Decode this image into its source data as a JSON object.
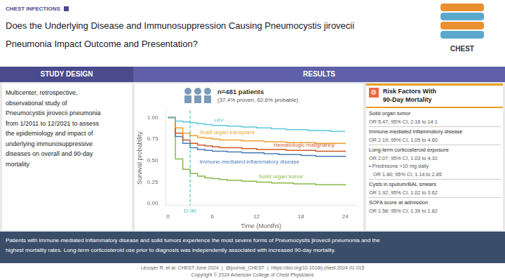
{
  "chart_data": {
    "type": "step",
    "title": [
      "Does the Underlying Disease and Immunosuppression Causing Pneumocystis jirovecii",
      "Pneumonia Impact Outcome and Presentation?"
    ],
    "x_label": "Time (Months)",
    "y_label": "Survival probability",
    "x": [
      0,
      1,
      2,
      3,
      4,
      5,
      6,
      7,
      8,
      9,
      10,
      11,
      12,
      13,
      14,
      15,
      16,
      17,
      18,
      19,
      20,
      21,
      22,
      23,
      24
    ],
    "series": [
      {
        "name": "HIV",
        "color": "#5bc8d8",
        "values": [
          1.0,
          0.96,
          0.95,
          0.94,
          0.93,
          0.92,
          0.91,
          0.91,
          0.9,
          0.9,
          0.89,
          0.89,
          0.88,
          0.88,
          0.87,
          0.87,
          0.86,
          0.86,
          0.86,
          0.85,
          0.85,
          0.85,
          0.84,
          0.84,
          0.84
        ]
      },
      {
        "name": "Solid organ transplant",
        "color": "#f0a030",
        "values": [
          1.0,
          0.88,
          0.82,
          0.79,
          0.77,
          0.76,
          0.75,
          0.74,
          0.74,
          0.74,
          0.73,
          0.73,
          0.73,
          0.72,
          0.72,
          0.72,
          0.71,
          0.71,
          0.71,
          0.71,
          0.7,
          0.7,
          0.7,
          0.7,
          0.69
        ]
      },
      {
        "name": "Hematologic malignancy",
        "color": "#d05828",
        "values": [
          1.0,
          0.82,
          0.74,
          0.7,
          0.68,
          0.67,
          0.66,
          0.65,
          0.65,
          0.65,
          0.64,
          0.64,
          0.63,
          0.63,
          0.63,
          0.63,
          0.62,
          0.62,
          0.62,
          0.62,
          0.61,
          0.61,
          0.61,
          0.61,
          0.6
        ]
      },
      {
        "name": "Immune-mediated inflammatory disease",
        "color": "#4878b8",
        "values": [
          1.0,
          0.78,
          0.7,
          0.65,
          0.63,
          0.62,
          0.61,
          0.61,
          0.6,
          0.6,
          0.59,
          0.59,
          0.59,
          0.58,
          0.58,
          0.57,
          0.57,
          0.57,
          0.56,
          0.56,
          0.55,
          0.55,
          0.55,
          0.55,
          0.54
        ]
      },
      {
        "name": "Solid organ tumor",
        "color": "#88b848",
        "values": [
          1.0,
          0.52,
          0.4,
          0.35,
          0.32,
          0.3,
          0.29,
          0.28,
          0.27,
          0.27,
          0.26,
          0.26,
          0.25,
          0.25,
          0.24,
          0.24,
          0.24,
          0.23,
          0.23,
          0.23,
          0.22,
          0.22,
          0.22,
          0.22,
          0.21
        ]
      }
    ],
    "xlim": [
      -0.3,
      25.5
    ],
    "xticks": [
      0,
      6,
      12,
      18,
      24
    ],
    "ylim": [
      -0.02,
      1.08
    ],
    "yticks": [
      {
        "value": 0.0,
        "label": "0.00"
      },
      {
        "value": 0.25,
        "label": "0.25"
      },
      {
        "value": 0.5,
        "label": "0.50"
      },
      {
        "value": 0.75,
        "label": "0.75"
      },
      {
        "value": 1.0,
        "label": "1.00"
      }
    ],
    "grid": false,
    "annotations": {
      "tag": "CHEST INFECTIONS",
      "logo": "CHEST",
      "headers": [
        "STUDY DESIGN",
        "RESULTS"
      ],
      "study_design": [
        "Multicenter, retrospective,",
        "observational study of",
        "Pneumocystis jirovecii pneumonia",
        "from 1/2011 to 12/2021 to assess",
        "the epidemiology and impact of",
        "underlying immunosuppressive",
        "diseases on overall and 90-day",
        "mortality"
      ],
      "sample": [
        "n=481 patients",
        "(37.4% proven, 62.6% probable)"
      ],
      "reference_line": {
        "x": 3,
        "label": "D-90",
        "color": "#40b8b8"
      },
      "risk_icon": "⚙",
      "risk_title": [
        "Risk Factors With",
        "90-Day Mortality"
      ],
      "risk_factors": [
        {
          "name": "Solid organ tumor",
          "lines": [
            "OR 5.47; 95% CI, 2.16 to 14.1"
          ]
        },
        {
          "name": "Immune-mediated inflammatory disease",
          "lines": [
            "OR 2.19; 95% CI, 1.05 to 4.60"
          ]
        },
        {
          "name": "Long-term corticosteroid exposure",
          "lines": [
            "OR 2.07; 95% CI, 1.03 to 4.31",
            "• Prednisone >10 mg daily",
            "   OR 1.80; 95% CI, 1.14 to 2.85"
          ]
        },
        {
          "name": "Cysts in sputum/BAL smears",
          "lines": [
            "OR 1.92; 95% CI, 1.02 to 3.62"
          ]
        },
        {
          "name": "SOFA score at admission",
          "lines": [
            "OR 1.58; 95% CI, 1.39 to 1.82"
          ]
        }
      ],
      "conclusion": [
        "Patients with immune-mediated inflammatory disease and solid tumors experience the most severe forms of Pneumocystis jirovecii pneumonia and the",
        "highest mortality rates. Long-term corticosteroid use prior to diagnosis was independently associated with increased 90-day mortality."
      ],
      "footer": [
        "Lécuyer R, et al. CHEST June 2024  |  @journal_CHEST  |  https://doi.org/10.1016/j.chest.2024.01.015",
        "Copyright © 2024 American College of Chest Physicians"
      ]
    }
  }
}
